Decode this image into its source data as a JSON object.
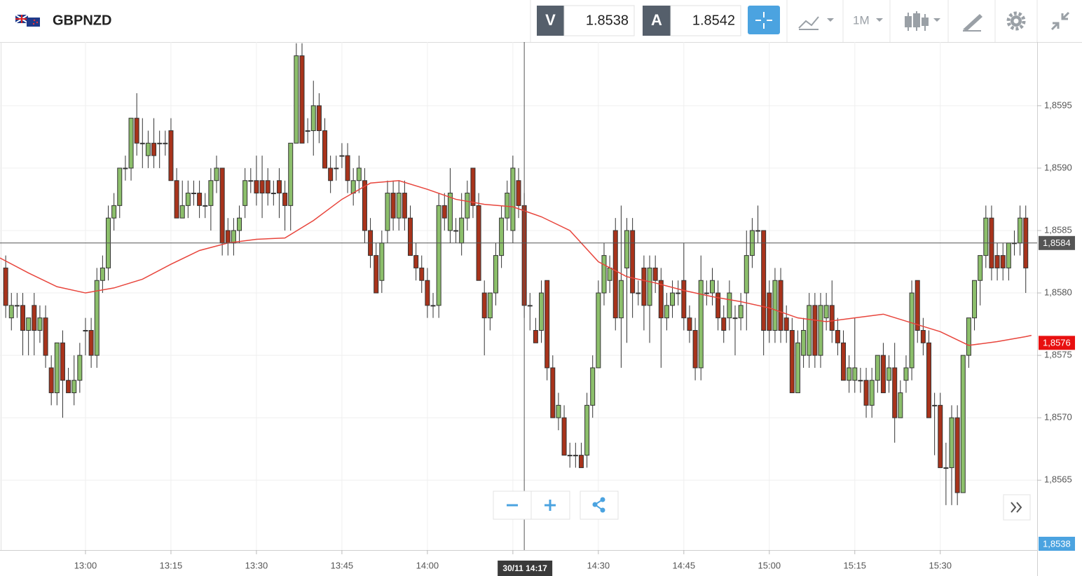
{
  "header": {
    "symbol": "GBPNZD",
    "sell": {
      "label": "V",
      "price": "1.8538"
    },
    "buy": {
      "label": "A",
      "price": "1.8542"
    },
    "timeframe": "1M"
  },
  "chart_data": {
    "type": "candlestick",
    "x": [
      "12:46",
      "12:47",
      "12:48",
      "12:49",
      "12:50",
      "12:51",
      "12:52",
      "12:53",
      "12:54",
      "12:55",
      "12:56",
      "12:57",
      "12:58",
      "12:59",
      "13:00",
      "13:01",
      "13:02",
      "13:03",
      "13:04",
      "13:05",
      "13:06",
      "13:07",
      "13:08",
      "13:09",
      "13:10",
      "13:11",
      "13:12",
      "13:13",
      "13:14",
      "13:15",
      "13:16",
      "13:17",
      "13:18",
      "13:19",
      "13:20",
      "13:21",
      "13:22",
      "13:23",
      "13:24",
      "13:25",
      "13:26",
      "13:27",
      "13:28",
      "13:29",
      "13:30",
      "13:31",
      "13:32",
      "13:33",
      "13:34",
      "13:35",
      "13:36",
      "13:37",
      "13:38",
      "13:39",
      "13:40",
      "13:41",
      "13:42",
      "13:43",
      "13:44",
      "13:45",
      "13:46",
      "13:47",
      "13:48",
      "13:49",
      "13:50",
      "13:51",
      "13:52",
      "13:53",
      "13:54",
      "13:55",
      "13:56",
      "13:57",
      "13:58",
      "13:59",
      "14:00",
      "14:01",
      "14:02",
      "14:03",
      "14:04",
      "14:05",
      "14:06",
      "14:07",
      "14:08",
      "14:09",
      "14:10",
      "14:11",
      "14:12",
      "14:13",
      "14:14",
      "14:15",
      "14:16",
      "14:17",
      "14:18",
      "14:19",
      "14:20",
      "14:21",
      "14:22",
      "14:23",
      "14:24",
      "14:25",
      "14:26",
      "14:27",
      "14:28",
      "14:29",
      "14:30",
      "14:31",
      "14:32",
      "14:33",
      "14:34",
      "14:35",
      "14:36",
      "14:37",
      "14:38",
      "14:39",
      "14:40",
      "14:41",
      "14:42",
      "14:43",
      "14:44",
      "14:45",
      "14:46",
      "14:47",
      "14:48",
      "14:49",
      "14:50",
      "14:51",
      "14:52",
      "14:53",
      "14:54",
      "14:55",
      "14:56",
      "14:57",
      "14:58",
      "14:59",
      "15:00",
      "15:01",
      "15:02",
      "15:03",
      "15:04",
      "15:05",
      "15:06",
      "15:07",
      "15:08",
      "15:09",
      "15:10",
      "15:11",
      "15:12",
      "15:13",
      "15:14",
      "15:15",
      "15:16",
      "15:17",
      "15:18",
      "15:19",
      "15:20",
      "15:21",
      "15:22",
      "15:23",
      "15:24",
      "15:25",
      "15:26",
      "15:27",
      "15:28",
      "15:29",
      "15:30",
      "15:31",
      "15:32",
      "15:33",
      "15:34",
      "15:35",
      "15:36",
      "15:37",
      "15:38",
      "15:39",
      "15:40",
      "15:41",
      "15:42",
      "15:43",
      "15:44",
      "15:45",
      "15:46"
    ],
    "ohlc": [
      [
        1.8582,
        1.8583,
        1.8578,
        1.8579
      ],
      [
        1.8578,
        1.858,
        1.8577,
        1.8579
      ],
      [
        1.8579,
        1.858,
        1.8578,
        1.8579
      ],
      [
        1.8579,
        1.858,
        1.8575,
        1.8577
      ],
      [
        1.8577,
        1.8578,
        1.8575,
        1.8578
      ],
      [
        1.8579,
        1.858,
        1.8575,
        1.8577
      ],
      [
        1.8577,
        1.8579,
        1.8576,
        1.8578
      ],
      [
        1.8578,
        1.8579,
        1.8574,
        1.8575
      ],
      [
        1.8574,
        1.8575,
        1.8571,
        1.8572
      ],
      [
        1.8572,
        1.8576,
        1.8571,
        1.8576
      ],
      [
        1.8576,
        1.8577,
        1.857,
        1.8573
      ],
      [
        1.8573,
        1.8574,
        1.8572,
        1.8572
      ],
      [
        1.8572,
        1.8575,
        1.8571,
        1.8573
      ],
      [
        1.8573,
        1.8576,
        1.8572,
        1.8575
      ],
      [
        1.8577,
        1.8578,
        1.8575,
        1.8577
      ],
      [
        1.8577,
        1.8578,
        1.8574,
        1.8575
      ],
      [
        1.8575,
        1.8582,
        1.8574,
        1.8581
      ],
      [
        1.8581,
        1.8583,
        1.858,
        1.8582
      ],
      [
        1.8582,
        1.8587,
        1.8581,
        1.8586
      ],
      [
        1.8586,
        1.8588,
        1.8585,
        1.8587
      ],
      [
        1.8587,
        1.859,
        1.8586,
        1.859
      ],
      [
        1.859,
        1.8591,
        1.8589,
        1.859
      ],
      [
        1.859,
        1.8594,
        1.8589,
        1.8594
      ],
      [
        1.8594,
        1.8596,
        1.8591,
        1.8592
      ],
      [
        1.8592,
        1.8594,
        1.859,
        1.8592
      ],
      [
        1.8591,
        1.8593,
        1.859,
        1.8592
      ],
      [
        1.8592,
        1.8594,
        1.859,
        1.8591
      ],
      [
        1.8592,
        1.8593,
        1.859,
        1.8592
      ],
      [
        1.8592,
        1.8593,
        1.8591,
        1.8592
      ],
      [
        1.8593,
        1.8594,
        1.8589,
        1.8589
      ],
      [
        1.8589,
        1.859,
        1.8586,
        1.8586
      ],
      [
        1.8586,
        1.8589,
        1.8586,
        1.8587
      ],
      [
        1.8587,
        1.8589,
        1.8586,
        1.8588
      ],
      [
        1.8588,
        1.8589,
        1.8587,
        1.8588
      ],
      [
        1.8588,
        1.8589,
        1.8586,
        1.8587
      ],
      [
        1.8587,
        1.8588,
        1.8586,
        1.8587
      ],
      [
        1.8587,
        1.859,
        1.8585,
        1.8589
      ],
      [
        1.8589,
        1.8591,
        1.8588,
        1.859
      ],
      [
        1.859,
        1.859,
        1.8583,
        1.8584
      ],
      [
        1.8585,
        1.8586,
        1.8583,
        1.8584
      ],
      [
        1.8584,
        1.8586,
        1.8583,
        1.8585
      ],
      [
        1.8585,
        1.8587,
        1.8584,
        1.8586
      ],
      [
        1.8587,
        1.859,
        1.8586,
        1.8589
      ],
      [
        1.8589,
        1.859,
        1.8588,
        1.8589
      ],
      [
        1.8589,
        1.8591,
        1.8587,
        1.8588
      ],
      [
        1.8589,
        1.8591,
        1.8586,
        1.8588
      ],
      [
        1.8589,
        1.859,
        1.8587,
        1.8588
      ],
      [
        1.8588,
        1.8589,
        1.8587,
        1.8588
      ],
      [
        1.8589,
        1.859,
        1.8586,
        1.8588
      ],
      [
        1.8588,
        1.8589,
        1.8585,
        1.8587
      ],
      [
        1.8587,
        1.8592,
        1.8585,
        1.8592
      ],
      [
        1.8592,
        1.86,
        1.8592,
        1.8599
      ],
      [
        1.8599,
        1.86,
        1.8592,
        1.8592
      ],
      [
        1.8593,
        1.8594,
        1.8592,
        1.8593
      ],
      [
        1.8593,
        1.8597,
        1.8591,
        1.8595
      ],
      [
        1.8595,
        1.8596,
        1.8592,
        1.8593
      ],
      [
        1.8593,
        1.8594,
        1.859,
        1.859
      ],
      [
        1.859,
        1.8591,
        1.8588,
        1.8589
      ],
      [
        1.859,
        1.8591,
        1.8589,
        1.859
      ],
      [
        1.8591,
        1.8592,
        1.859,
        1.8591
      ],
      [
        1.8591,
        1.8592,
        1.8588,
        1.8589
      ],
      [
        1.8588,
        1.859,
        1.8587,
        1.8589
      ],
      [
        1.8589,
        1.8591,
        1.8588,
        1.859
      ],
      [
        1.8589,
        1.859,
        1.8584,
        1.8585
      ],
      [
        1.8585,
        1.8586,
        1.8582,
        1.8583
      ],
      [
        1.8583,
        1.8584,
        1.858,
        1.858
      ],
      [
        1.8581,
        1.8585,
        1.858,
        1.8584
      ],
      [
        1.8585,
        1.8589,
        1.8584,
        1.8588
      ],
      [
        1.8588,
        1.8589,
        1.8585,
        1.8586
      ],
      [
        1.8586,
        1.8589,
        1.8585,
        1.8588
      ],
      [
        1.8588,
        1.8589,
        1.8585,
        1.8586
      ],
      [
        1.8586,
        1.8587,
        1.8583,
        1.8583
      ],
      [
        1.8583,
        1.8584,
        1.8581,
        1.8582
      ],
      [
        1.8582,
        1.8583,
        1.858,
        1.8581
      ],
      [
        1.8581,
        1.8582,
        1.8578,
        1.8579
      ],
      [
        1.8579,
        1.858,
        1.8578,
        1.8579
      ],
      [
        1.8579,
        1.8588,
        1.8578,
        1.8587
      ],
      [
        1.8587,
        1.8588,
        1.8585,
        1.8586
      ],
      [
        1.8585,
        1.859,
        1.8584,
        1.8588
      ],
      [
        1.8585,
        1.8586,
        1.8584,
        1.8585
      ],
      [
        1.8584,
        1.8588,
        1.8583,
        1.8586
      ],
      [
        1.8586,
        1.8589,
        1.8585,
        1.8588
      ],
      [
        1.859,
        1.859,
        1.8586,
        1.8587
      ],
      [
        1.8587,
        1.8588,
        1.8581,
        1.8581
      ],
      [
        1.858,
        1.8581,
        1.8575,
        1.8578
      ],
      [
        1.8578,
        1.858,
        1.8577,
        1.858
      ],
      [
        1.858,
        1.8584,
        1.8579,
        1.8583
      ],
      [
        1.8583,
        1.8587,
        1.8582,
        1.8586
      ],
      [
        1.8586,
        1.8589,
        1.8585,
        1.8588
      ],
      [
        1.8585,
        1.8591,
        1.8584,
        1.859
      ],
      [
        1.8589,
        1.859,
        1.8586,
        1.8587
      ],
      [
        1.8587,
        1.8588,
        1.8578,
        1.8579
      ],
      [
        1.8579,
        1.858,
        1.8577,
        1.8579
      ],
      [
        1.8577,
        1.8578,
        1.8576,
        1.8576
      ],
      [
        1.8577,
        1.8581,
        1.8576,
        1.858
      ],
      [
        1.8581,
        1.8581,
        1.8573,
        1.8574
      ],
      [
        1.8574,
        1.8575,
        1.857,
        1.857
      ],
      [
        1.857,
        1.8572,
        1.8569,
        1.8571
      ],
      [
        1.857,
        1.8571,
        1.8567,
        1.8567
      ],
      [
        1.8567,
        1.8568,
        1.8566,
        1.8567
      ],
      [
        1.8567,
        1.8568,
        1.8566,
        1.8567
      ],
      [
        1.8567,
        1.8568,
        1.8566,
        1.8566
      ],
      [
        1.8567,
        1.8572,
        1.8566,
        1.8571
      ],
      [
        1.8571,
        1.8575,
        1.857,
        1.8574
      ],
      [
        1.8574,
        1.8581,
        1.8574,
        1.858
      ],
      [
        1.858,
        1.8584,
        1.8579,
        1.8583
      ],
      [
        1.8581,
        1.8583,
        1.858,
        1.8582
      ],
      [
        1.8585,
        1.8586,
        1.8577,
        1.8578
      ],
      [
        1.8578,
        1.8587,
        1.8574,
        1.8581
      ],
      [
        1.8582,
        1.8586,
        1.8576,
        1.8585
      ],
      [
        1.8585,
        1.8586,
        1.8578,
        1.858
      ],
      [
        1.858,
        1.8581,
        1.8579,
        1.858
      ],
      [
        1.8582,
        1.8583,
        1.8577,
        1.8579
      ],
      [
        1.8579,
        1.8583,
        1.8576,
        1.8582
      ],
      [
        1.8582,
        1.8583,
        1.858,
        1.8581
      ],
      [
        1.8581,
        1.8582,
        1.8574,
        1.8578
      ],
      [
        1.8578,
        1.858,
        1.8577,
        1.8579
      ],
      [
        1.8579,
        1.8581,
        1.8578,
        1.858
      ],
      [
        1.858,
        1.8581,
        1.8579,
        1.858
      ],
      [
        1.8581,
        1.8584,
        1.8577,
        1.8578
      ],
      [
        1.8578,
        1.8579,
        1.8576,
        1.8577
      ],
      [
        1.8577,
        1.8578,
        1.8573,
        1.8574
      ],
      [
        1.8574,
        1.8583,
        1.8573,
        1.8581
      ],
      [
        1.858,
        1.8581,
        1.8579,
        1.858
      ],
      [
        1.858,
        1.8582,
        1.8579,
        1.8581
      ],
      [
        1.858,
        1.8581,
        1.8577,
        1.8578
      ],
      [
        1.8578,
        1.8579,
        1.8576,
        1.8577
      ],
      [
        1.8578,
        1.8581,
        1.8577,
        1.858
      ],
      [
        1.8578,
        1.8579,
        1.8575,
        1.8578
      ],
      [
        1.8578,
        1.858,
        1.8577,
        1.8579
      ],
      [
        1.858,
        1.8585,
        1.8577,
        1.8583
      ],
      [
        1.8583,
        1.8586,
        1.8582,
        1.8585
      ],
      [
        1.8585,
        1.8587,
        1.8584,
        1.8585
      ],
      [
        1.8585,
        1.8585,
        1.8575,
        1.8577
      ],
      [
        1.858,
        1.8581,
        1.8576,
        1.8577
      ],
      [
        1.8577,
        1.8582,
        1.8576,
        1.8581
      ],
      [
        1.8581,
        1.8582,
        1.8576,
        1.8577
      ],
      [
        1.8578,
        1.8579,
        1.8576,
        1.8577
      ],
      [
        1.8577,
        1.8578,
        1.8572,
        1.8572
      ],
      [
        1.8572,
        1.8577,
        1.8572,
        1.8576
      ],
      [
        1.8575,
        1.8578,
        1.8574,
        1.8577
      ],
      [
        1.8575,
        1.858,
        1.8574,
        1.8579
      ],
      [
        1.8579,
        1.858,
        1.8574,
        1.8575
      ],
      [
        1.8575,
        1.858,
        1.8574,
        1.8579
      ],
      [
        1.8578,
        1.858,
        1.8577,
        1.8579
      ],
      [
        1.8579,
        1.8581,
        1.8576,
        1.8577
      ],
      [
        1.8577,
        1.8578,
        1.8575,
        1.8576
      ],
      [
        1.8576,
        1.8577,
        1.8573,
        1.8573
      ],
      [
        1.8573,
        1.8575,
        1.8572,
        1.8574
      ],
      [
        1.8573,
        1.8578,
        1.8572,
        1.8574
      ],
      [
        1.8573,
        1.8574,
        1.8572,
        1.8573
      ],
      [
        1.8573,
        1.8574,
        1.857,
        1.8571
      ],
      [
        1.8571,
        1.8574,
        1.857,
        1.8573
      ],
      [
        1.8573,
        1.8575,
        1.8572,
        1.8575
      ],
      [
        1.8575,
        1.8576,
        1.8572,
        1.8572
      ],
      [
        1.8573,
        1.8575,
        1.8572,
        1.8574
      ],
      [
        1.8574,
        1.8576,
        1.8568,
        1.857
      ],
      [
        1.857,
        1.8573,
        1.857,
        1.8572
      ],
      [
        1.8573,
        1.8575,
        1.8572,
        1.8574
      ],
      [
        1.8574,
        1.8581,
        1.8573,
        1.858
      ],
      [
        1.8581,
        1.8581,
        1.8576,
        1.8577
      ],
      [
        1.8577,
        1.8578,
        1.8575,
        1.8576
      ],
      [
        1.8576,
        1.8577,
        1.857,
        1.857
      ],
      [
        1.8571,
        1.8572,
        1.8567,
        1.8571
      ],
      [
        1.8571,
        1.8572,
        1.8566,
        1.8566
      ],
      [
        1.8566,
        1.8568,
        1.8563,
        1.8566
      ],
      [
        1.8566,
        1.8571,
        1.8563,
        1.857
      ],
      [
        1.857,
        1.8571,
        1.8563,
        1.8564
      ],
      [
        1.8564,
        1.8575,
        1.8564,
        1.8575
      ],
      [
        1.8575,
        1.8578,
        1.8574,
        1.8578
      ],
      [
        1.8578,
        1.8581,
        1.8577,
        1.8581
      ],
      [
        1.8581,
        1.8583,
        1.8579,
        1.8583
      ],
      [
        1.8583,
        1.8587,
        1.8582,
        1.8586
      ],
      [
        1.8586,
        1.8587,
        1.8581,
        1.8582
      ],
      [
        1.8583,
        1.8584,
        1.8581,
        1.8582
      ],
      [
        1.8583,
        1.8584,
        1.8581,
        1.8582
      ],
      [
        1.8582,
        1.8584,
        1.8581,
        1.8584
      ],
      [
        1.8584,
        1.8585,
        1.8583,
        1.8584
      ],
      [
        1.8584,
        1.8587,
        1.8583,
        1.8586
      ],
      [
        1.8586,
        1.8587,
        1.858,
        1.8582
      ]
    ],
    "up_color": "#8cbf6b",
    "down_color": "#a8331b",
    "moving_average": {
      "color": "#e8453c",
      "x": [
        "12:45",
        "12:50",
        "12:55",
        "13:00",
        "13:05",
        "13:10",
        "13:15",
        "13:20",
        "13:25",
        "13:30",
        "13:35",
        "13:40",
        "13:45",
        "13:50",
        "13:55",
        "14:00",
        "14:05",
        "14:10",
        "14:15",
        "14:20",
        "14:25",
        "14:30",
        "14:35",
        "14:40",
        "14:45",
        "14:50",
        "14:55",
        "15:00",
        "15:05",
        "15:10",
        "15:15",
        "15:20",
        "15:25",
        "15:30",
        "15:35",
        "15:40",
        "15:45",
        "15:46"
      ],
      "values": [
        1.85828,
        1.85816,
        1.85805,
        1.858,
        1.85804,
        1.85811,
        1.85823,
        1.85834,
        1.8584,
        1.85843,
        1.85844,
        1.85858,
        1.85875,
        1.85888,
        1.8589,
        1.85883,
        1.85875,
        1.85871,
        1.85869,
        1.85861,
        1.8585,
        1.85825,
        1.85813,
        1.85808,
        1.85802,
        1.85797,
        1.85793,
        1.85788,
        1.8578,
        1.85777,
        1.8578,
        1.85783,
        1.85776,
        1.85769,
        1.85758,
        1.85761,
        1.85765,
        1.85766
      ]
    },
    "xlim": [
      "12:45",
      "15:47"
    ],
    "xticks": [
      "13:00",
      "13:15",
      "13:30",
      "13:45",
      "14:00",
      "14:15",
      "14:30",
      "14:45",
      "15:00",
      "15:15",
      "15:30"
    ],
    "ylim": [
      1.85594,
      1.86001
    ],
    "yticks": [
      {
        "value": 1.8565,
        "label": "1,8565"
      },
      {
        "value": 1.857,
        "label": "1,8570"
      },
      {
        "value": 1.8575,
        "label": "1,8575"
      },
      {
        "value": 1.858,
        "label": "1,8580"
      },
      {
        "value": 1.8585,
        "label": "1,8585"
      },
      {
        "value": 1.859,
        "label": "1,8590"
      },
      {
        "value": 1.8595,
        "label": "1,8595"
      }
    ],
    "grid": true,
    "crosshair": {
      "x": {
        "value": "14:17",
        "label": "30/11 14:17"
      },
      "y": {
        "value": 1.8584,
        "label": "1,8584"
      }
    },
    "last_price": {
      "value": 1.8576,
      "label": "1,8576"
    },
    "bid_marker": {
      "label": "1,8538"
    }
  }
}
